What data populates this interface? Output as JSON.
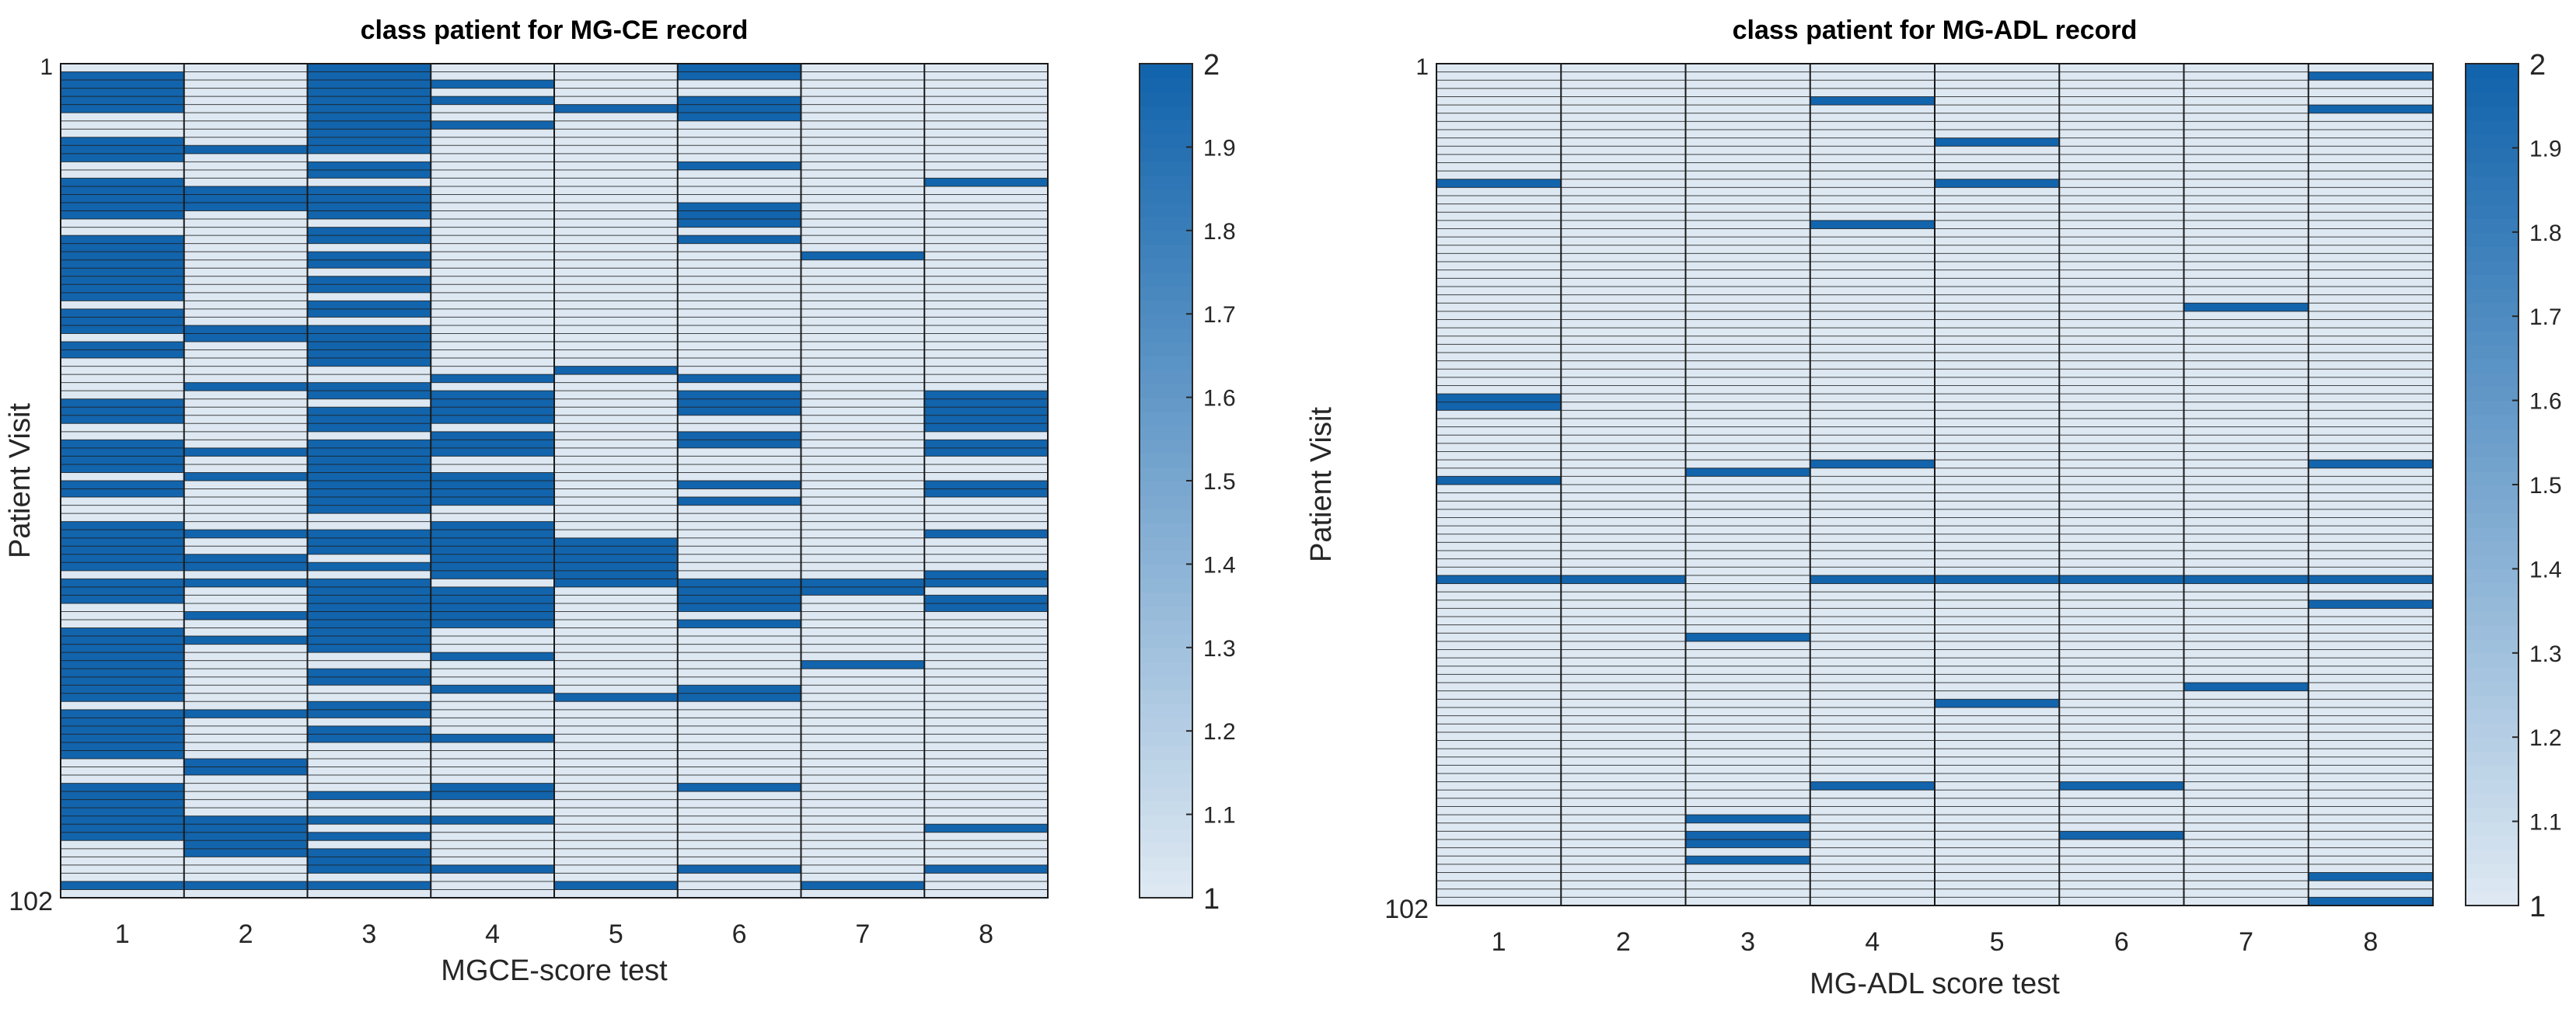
{
  "chart_data": [
    {
      "type": "heatmap",
      "title": "class patient for MG-CE record",
      "xlabel": "MGCE-score test",
      "ylabel": "Patient Visit",
      "x": [
        "1",
        "2",
        "3",
        "4",
        "5",
        "6",
        "7",
        "8"
      ],
      "y_first_label": "1",
      "y_last_label": "102",
      "n_rows": 102,
      "colorbar": {
        "min": 1,
        "max": 2,
        "ticks": [
          "1",
          "1.1",
          "1.2",
          "1.3",
          "1.4",
          "1.5",
          "1.6",
          "1.7",
          "1.8",
          "1.9",
          "2"
        ]
      },
      "colors": {
        "low": "#dde8f2",
        "high": "#1264ac",
        "grid": "#1a1a1a"
      },
      "high_value": 2,
      "low_value": 1,
      "high_cells": {
        "1": [
          2,
          3,
          4,
          5,
          6,
          10,
          11,
          12,
          15,
          16,
          17,
          18,
          19,
          22,
          23,
          24,
          25,
          26,
          27,
          28,
          29,
          31,
          32,
          33,
          35,
          36,
          42,
          43,
          44,
          47,
          48,
          49,
          50,
          52,
          53,
          57,
          58,
          59,
          60,
          61,
          62,
          64,
          65,
          66,
          70,
          71,
          72,
          73,
          74,
          75,
          76,
          77,
          78,
          80,
          81,
          82,
          83,
          84,
          85,
          89,
          90,
          91,
          92,
          93,
          94,
          95,
          101
        ],
        "2": [
          11,
          16,
          17,
          18,
          33,
          34,
          40,
          48,
          51,
          58,
          61,
          62,
          64,
          68,
          71,
          80,
          86,
          87,
          93,
          94,
          95,
          96,
          97,
          101
        ],
        "3": [
          1,
          2,
          3,
          4,
          5,
          6,
          7,
          8,
          9,
          10,
          11,
          13,
          14,
          16,
          17,
          18,
          19,
          21,
          22,
          24,
          25,
          27,
          28,
          30,
          31,
          33,
          34,
          35,
          36,
          37,
          40,
          41,
          43,
          44,
          45,
          47,
          48,
          49,
          50,
          51,
          52,
          53,
          54,
          55,
          58,
          59,
          60,
          62,
          64,
          65,
          66,
          67,
          68,
          69,
          70,
          71,
          72,
          75,
          76,
          79,
          80,
          82,
          83,
          90,
          93,
          95,
          97,
          98,
          99,
          101
        ],
        "4": [
          3,
          5,
          8,
          39,
          41,
          42,
          43,
          44,
          46,
          47,
          48,
          51,
          52,
          53,
          54,
          57,
          58,
          59,
          60,
          61,
          62,
          63,
          65,
          66,
          67,
          68,
          69,
          73,
          77,
          83,
          89,
          90,
          93,
          99
        ],
        "5": [
          6,
          38,
          59,
          60,
          61,
          62,
          63,
          64,
          78,
          101
        ],
        "6": [
          1,
          2,
          5,
          6,
          7,
          13,
          18,
          19,
          20,
          22,
          39,
          41,
          42,
          43,
          46,
          47,
          52,
          54,
          64,
          65,
          66,
          67,
          69,
          77,
          78,
          89,
          99
        ],
        "7": [
          24,
          64,
          65,
          74,
          101
        ],
        "8": [
          15,
          41,
          42,
          43,
          44,
          45,
          47,
          48,
          52,
          53,
          58,
          63,
          64,
          66,
          67,
          94,
          99
        ]
      }
    },
    {
      "type": "heatmap",
      "title": "class patient for MG-ADL record",
      "xlabel": "MG-ADL score test",
      "ylabel": "Patient Visit",
      "x": [
        "1",
        "2",
        "3",
        "4",
        "5",
        "6",
        "7",
        "8"
      ],
      "y_first_label": "1",
      "y_last_label": "102",
      "n_rows": 102,
      "colorbar": {
        "min": 1,
        "max": 2,
        "ticks": [
          "1",
          "1.1",
          "1.2",
          "1.3",
          "1.4",
          "1.5",
          "1.6",
          "1.7",
          "1.8",
          "1.9",
          "2"
        ]
      },
      "colors": {
        "low": "#dde8f2",
        "high": "#1264ac",
        "grid": "#1a1a1a"
      },
      "high_value": 2,
      "low_value": 1,
      "high_cells": {
        "1": [
          15,
          41,
          42,
          51,
          63
        ],
        "2": [
          63
        ],
        "3": [
          50,
          70,
          92,
          94,
          95,
          97
        ],
        "4": [
          5,
          20,
          49,
          63,
          88
        ],
        "5": [
          10,
          15,
          63,
          78
        ],
        "6": [
          63,
          88,
          94
        ],
        "7": [
          30,
          76,
          63
        ],
        "8": [
          2,
          6,
          49,
          63,
          66,
          99,
          102
        ]
      }
    }
  ]
}
